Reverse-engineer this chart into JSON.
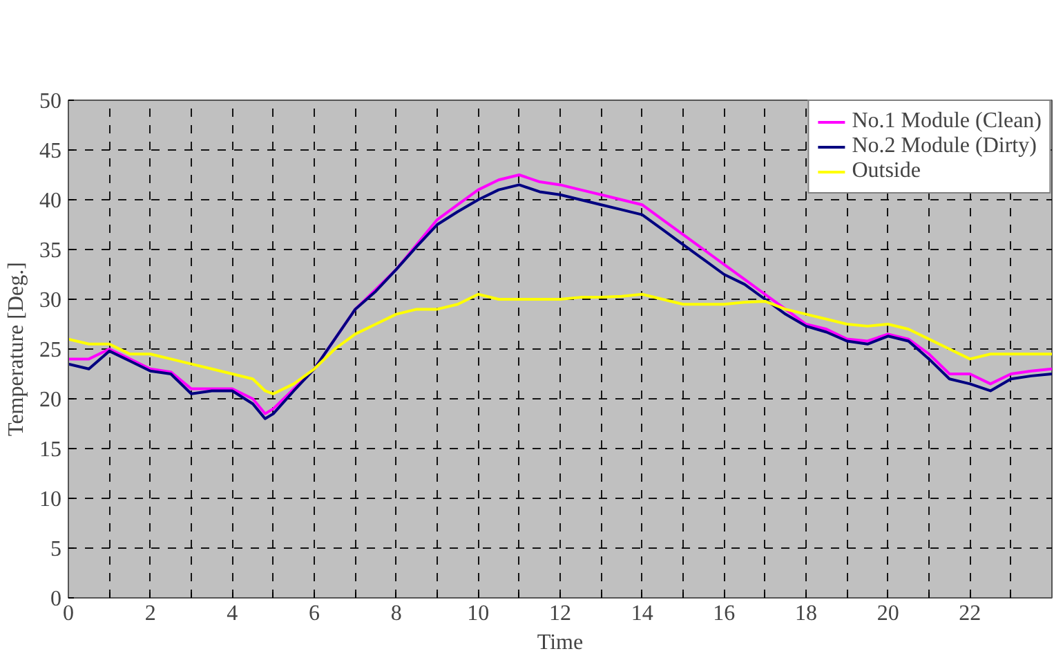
{
  "chart_data": {
    "type": "line",
    "xlabel": "Time",
    "ylabel": "Temperature [Deg.]",
    "xlim": [
      0,
      24
    ],
    "ylim": [
      0,
      50
    ],
    "xticks": [
      0,
      {
        "value": 1,
        "label": null
      },
      2,
      {
        "value": 3,
        "label": null
      },
      4,
      {
        "value": 5,
        "label": null
      },
      6,
      {
        "value": 7,
        "label": null
      },
      8,
      {
        "value": 9,
        "label": null
      },
      10,
      {
        "value": 11,
        "label": null
      },
      12,
      {
        "value": 13,
        "label": null
      },
      14,
      {
        "value": 15,
        "label": null
      },
      16,
      {
        "value": 17,
        "label": null
      },
      18,
      {
        "value": 19,
        "label": null
      },
      20,
      {
        "value": 21,
        "label": null
      },
      22,
      {
        "value": 23,
        "label": null
      }
    ],
    "yticks": [
      0,
      5,
      10,
      15,
      20,
      25,
      30,
      35,
      40,
      45,
      50
    ],
    "grid": true,
    "legend": "top right",
    "line_style": "solid",
    "marker": "none",
    "x": [
      0,
      0.5,
      1,
      1.5,
      2,
      2.5,
      3,
      3.5,
      4,
      4.5,
      4.8,
      5,
      5.5,
      6,
      6.5,
      7,
      7.5,
      8,
      8.5,
      9,
      9.5,
      10,
      10.5,
      11,
      11.5,
      12,
      12.5,
      13,
      13.5,
      14,
      14.5,
      15,
      15.5,
      16,
      16.5,
      17,
      17.5,
      18,
      18.5,
      19,
      19.5,
      20,
      20.5,
      21,
      21.5,
      22,
      22.5,
      23,
      23.5,
      24
    ],
    "series": [
      {
        "name": "No.1 Module (Clean)",
        "color": "#ff00ff",
        "values": [
          24,
          24,
          25,
          24,
          23,
          22.7,
          21,
          21,
          21,
          20,
          18.5,
          19,
          21,
          23,
          26,
          29,
          31,
          33,
          35.5,
          38,
          39.5,
          41,
          42,
          42.5,
          41.8,
          41.5,
          41,
          40.5,
          40,
          39.5,
          38,
          36.5,
          35,
          33.5,
          32,
          30.5,
          29,
          27.5,
          27,
          26,
          25.8,
          26.5,
          26,
          24.5,
          22.5,
          22.5,
          21.5,
          22.5,
          22.8,
          23
        ]
      },
      {
        "name": "No.2 Module (Dirty)",
        "color": "#000080",
        "values": [
          23.5,
          23,
          24.8,
          23.8,
          22.8,
          22.5,
          20.5,
          20.8,
          20.8,
          19.5,
          18,
          18.5,
          20.8,
          23,
          26,
          29,
          30.8,
          33,
          35.3,
          37.5,
          38.8,
          40,
          41,
          41.5,
          40.8,
          40.5,
          40,
          39.5,
          39,
          38.5,
          37,
          35.5,
          34,
          32.5,
          31.5,
          30,
          28.5,
          27.3,
          26.7,
          25.8,
          25.5,
          26.3,
          25.8,
          24,
          22,
          21.5,
          20.8,
          22,
          22.3,
          22.5
        ]
      },
      {
        "name": "Outside",
        "color": "#ffff00",
        "values": [
          26,
          25.5,
          25.5,
          24.5,
          24.5,
          24,
          23.5,
          23,
          22.5,
          22,
          20.8,
          20.5,
          21.5,
          23,
          25,
          26.5,
          27.5,
          28.5,
          29,
          29,
          29.5,
          30.5,
          30,
          30,
          30,
          30,
          30.2,
          30.2,
          30.3,
          30.5,
          30,
          29.5,
          29.5,
          29.5,
          29.7,
          29.8,
          29,
          28.5,
          28,
          27.5,
          27.3,
          27.5,
          27,
          26,
          25,
          24,
          24.5,
          24.5,
          24.5,
          24.5
        ]
      }
    ]
  }
}
